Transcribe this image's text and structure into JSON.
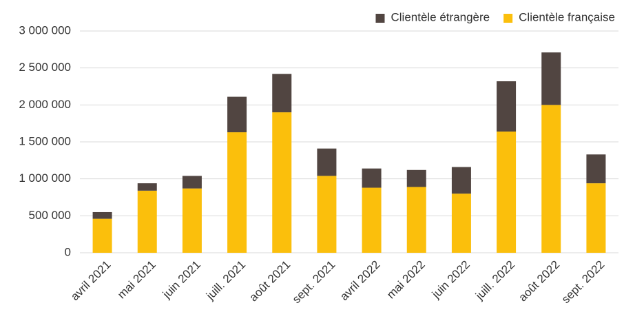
{
  "chart_data": {
    "type": "stacked_bar",
    "categories": [
      "avril 2021",
      "mai 2021",
      "juin 2021",
      "juill. 2021",
      "août 2021",
      "sept. 2021",
      "avril 2022",
      "mai 2022",
      "juin 2022",
      "juill. 2022",
      "août 2022",
      "sept. 2022"
    ],
    "series": [
      {
        "name": "Clientèle française",
        "color": "#fbbf0c",
        "values": [
          460000,
          840000,
          870000,
          1630000,
          1900000,
          1040000,
          880000,
          890000,
          800000,
          1640000,
          2000000,
          940000
        ]
      },
      {
        "name": "Clientèle étrangère",
        "color": "#514541",
        "values": [
          90000,
          100000,
          170000,
          480000,
          520000,
          370000,
          260000,
          230000,
          360000,
          680000,
          710000,
          390000
        ]
      }
    ],
    "ylim": [
      0,
      3000000
    ],
    "yticks": [
      0,
      {
        "value": 500000,
        "label": "500 000"
      },
      {
        "value": 1000000,
        "label": "1 000 000"
      },
      {
        "value": 1500000,
        "label": "1 500 000"
      },
      {
        "value": 2000000,
        "label": "2 000 000"
      },
      {
        "value": 2500000,
        "label": "2 500 000"
      },
      {
        "value": 3000000,
        "label": "3 000 000"
      }
    ],
    "grid": true,
    "legend": "top-right"
  }
}
